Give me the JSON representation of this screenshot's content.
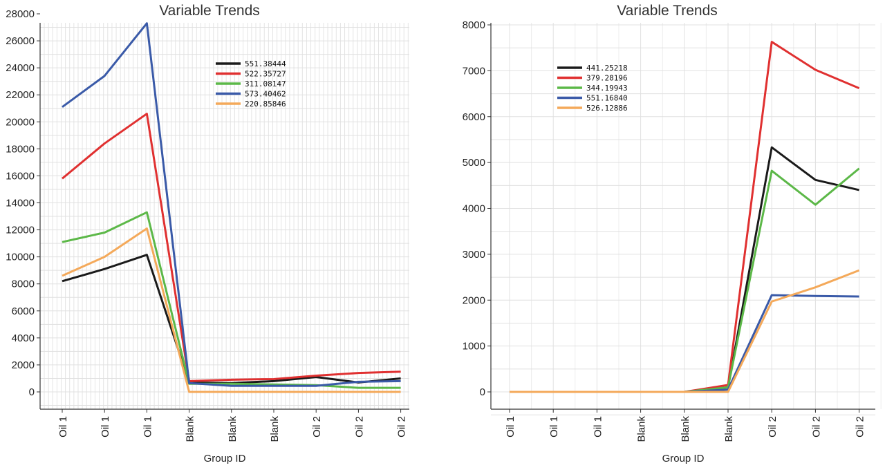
{
  "chart_data": [
    {
      "type": "line",
      "title": "Variable Trends",
      "xlabel": "Group ID",
      "ylabel": "",
      "categories": [
        "Oil 1",
        "Oil 1",
        "Oil 1",
        "Blank",
        "Blank",
        "Blank",
        "Oil 2",
        "Oil 2",
        "Oil 2"
      ],
      "ylim": [
        -1500,
        28800
      ],
      "yticks": [
        0,
        2000,
        4000,
        6000,
        8000,
        10000,
        12000,
        14000,
        16000,
        18000,
        20000,
        22000,
        24000,
        26000,
        28000
      ],
      "grid": true,
      "legend_position": "top-center",
      "series": [
        {
          "name": "551.38444",
          "color": "#1a1a1a",
          "values": [
            8200,
            9100,
            10150,
            700,
            650,
            800,
            1100,
            700,
            1000
          ]
        },
        {
          "name": "522.35727",
          "color": "#e03030",
          "values": [
            15800,
            18400,
            20600,
            800,
            900,
            950,
            1200,
            1400,
            1500
          ]
        },
        {
          "name": "311.08147",
          "color": "#5cb848",
          "values": [
            11100,
            11800,
            13300,
            600,
            600,
            550,
            500,
            300,
            300
          ]
        },
        {
          "name": "573.40462",
          "color": "#3a5aa8",
          "values": [
            21100,
            23400,
            27300,
            650,
            450,
            450,
            450,
            750,
            800
          ]
        },
        {
          "name": "220.85846",
          "color": "#f4a95a",
          "values": [
            8600,
            10000,
            12100,
            0,
            0,
            0,
            0,
            0,
            0
          ]
        }
      ]
    },
    {
      "type": "line",
      "title": "Variable Trends",
      "xlabel": "Group ID",
      "ylabel": "",
      "categories": [
        "Oil 1",
        "Oil 1",
        "Oil 1",
        "Blank",
        "Blank",
        "Blank",
        "Oil 2",
        "Oil 2",
        "Oil 2"
      ],
      "ylim": [
        -400,
        8000
      ],
      "yticks": [
        0,
        1000,
        2000,
        3000,
        4000,
        5000,
        6000,
        7000,
        8000
      ],
      "grid": true,
      "legend_position": "top-left",
      "series": [
        {
          "name": "441.25218",
          "color": "#1a1a1a",
          "values": [
            0,
            0,
            0,
            0,
            0,
            100,
            5330,
            4620,
            4400
          ]
        },
        {
          "name": "379.28196",
          "color": "#e03030",
          "values": [
            0,
            0,
            0,
            0,
            0,
            150,
            7630,
            7020,
            6620
          ]
        },
        {
          "name": "344.19943",
          "color": "#5cb848",
          "values": [
            0,
            0,
            0,
            0,
            0,
            100,
            4820,
            4080,
            4870
          ]
        },
        {
          "name": "551.16840",
          "color": "#3a5aa8",
          "values": [
            0,
            0,
            0,
            0,
            0,
            50,
            2110,
            2090,
            2080
          ]
        },
        {
          "name": "526.12886",
          "color": "#f4a95a",
          "values": [
            0,
            0,
            0,
            0,
            0,
            0,
            1970,
            2280,
            2650
          ]
        }
      ]
    }
  ]
}
